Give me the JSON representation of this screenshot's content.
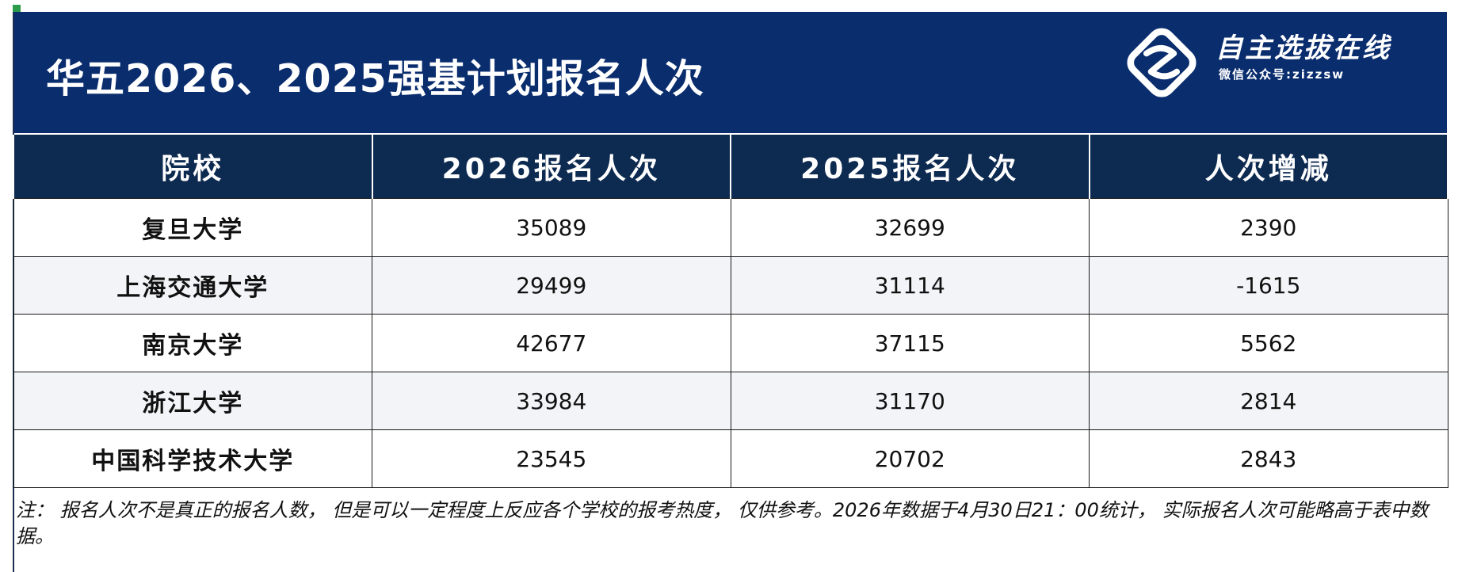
{
  "header": {
    "title": "华五2026、2025强基计划报名人次",
    "logo_name": "自主选拔在线",
    "logo_sub": "微信公众号:zizzsw",
    "logo_icon": "zizzsw-logo-icon",
    "colors": {
      "banner": "#0a2d6e",
      "table_header": "#0d2a50",
      "accent_green": "#2d9c4a"
    }
  },
  "table": {
    "columns": [
      "院校",
      "2026报名人次",
      "2025报名人次",
      "人次增减"
    ],
    "rows": [
      {
        "school": "复旦大学",
        "y2026": "35089",
        "y2025": "32699",
        "delta": "2390"
      },
      {
        "school": "上海交通大学",
        "y2026": "29499",
        "y2025": "31114",
        "delta": "-1615"
      },
      {
        "school": "南京大学",
        "y2026": "42677",
        "y2025": "37115",
        "delta": "5562"
      },
      {
        "school": "浙江大学",
        "y2026": "33984",
        "y2025": "31170",
        "delta": "2814"
      },
      {
        "school": "中国科学技术大学",
        "y2026": "23545",
        "y2025": "20702",
        "delta": "2843"
      }
    ]
  },
  "footer": {
    "note": "注： 报名人次不是真正的报名人数， 但是可以一定程度上反应各个学校的报考热度， 仅供参考。2026年数据于4月30日21：00统计， 实际报名人次可能略高于表中数据。"
  }
}
